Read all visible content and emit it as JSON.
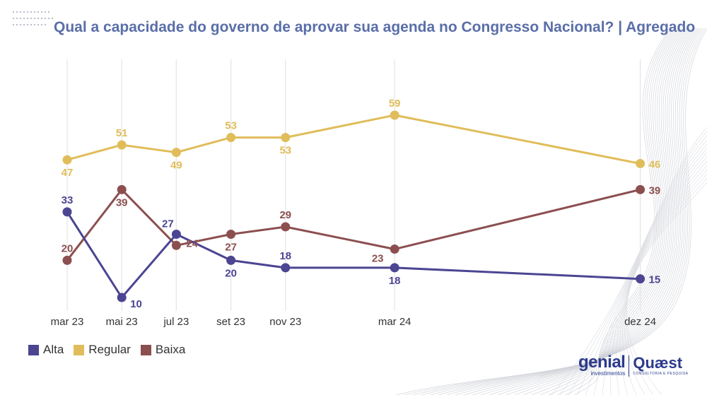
{
  "header": {
    "title": "Qual a capacidade do governo de aprovar sua agenda no Congresso Nacional? | Agregado"
  },
  "colors": {
    "title": "#5a6ea8",
    "alta": "#4b4592",
    "regular": "#e0bd5a",
    "baixa": "#8c4f50",
    "grid": "#e6e6e6",
    "axis_text": "#333333"
  },
  "legend": {
    "items": [
      {
        "label": "Alta",
        "color": "#4b4592"
      },
      {
        "label": "Regular",
        "color": "#e0bd5a"
      },
      {
        "label": "Baixa",
        "color": "#8c4f50"
      }
    ]
  },
  "logos": {
    "genial": {
      "name": "genial",
      "tagline": "investimentos"
    },
    "quaest": {
      "name": "Quæst",
      "tagline": "CONSULTORIA E PESQUISA"
    }
  },
  "chart_data": {
    "type": "line",
    "title": "Qual a capacidade do governo de aprovar sua agenda no Congresso Nacional? | Agregado",
    "xlabel": "",
    "ylabel": "",
    "categories": [
      "mar 23",
      "mai 23",
      "jul 23",
      "set 23",
      "nov 23",
      "mar 24",
      "dez 24"
    ],
    "month_index": [
      0,
      2,
      4,
      6,
      8,
      12,
      21
    ],
    "ylim": [
      10,
      59
    ],
    "grid": "vertical",
    "legend_position": "bottom-left",
    "series": [
      {
        "name": "Alta",
        "color": "#4b4592",
        "values": [
          33,
          10,
          27,
          20,
          18,
          18,
          15
        ],
        "label_pos": [
          "above",
          "below-right",
          "above-left",
          "below",
          "above",
          "below",
          "right"
        ]
      },
      {
        "name": "Regular",
        "color": "#e0bd5a",
        "values": [
          47,
          51,
          49,
          53,
          53,
          59,
          46
        ],
        "label_pos": [
          "below",
          "above",
          "below",
          "above",
          "below",
          "above",
          "right"
        ]
      },
      {
        "name": "Baixa",
        "color": "#8c4f50",
        "values": [
          20,
          39,
          24,
          27,
          29,
          23,
          39
        ],
        "label_pos": [
          "above",
          "below",
          "right",
          "below",
          "above",
          "below-left",
          "right"
        ]
      }
    ]
  }
}
